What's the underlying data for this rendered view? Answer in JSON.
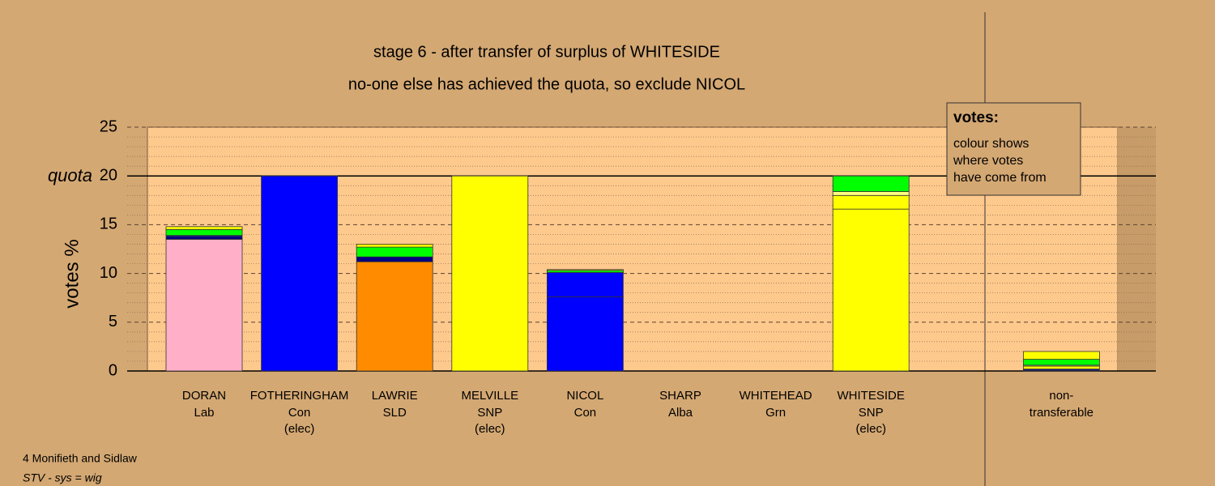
{
  "chart_data": {
    "type": "stacked-bar",
    "title": "stage 6 - after transfer of surplus of WHITESIDE",
    "subtitle": "no-one else has achieved the quota, so exclude NICOL",
    "y_label": "votes %",
    "quota": {
      "value": 20,
      "label": "quota"
    },
    "categories": [
      "DORAN",
      "FOTHERINGHAM",
      "LAWRIE",
      "MELVILLE",
      "NICOL",
      "SHARP",
      "WHITEHEAD",
      "WHITESIDE",
      null,
      "non-"
    ],
    "parties": [
      "Lab",
      "Con",
      "SLD",
      "SNP",
      "Con",
      "Alba",
      "Grn",
      "SNP",
      null,
      "transferable"
    ],
    "notes": [
      null,
      "(elec)",
      null,
      "(elec)",
      null,
      null,
      null,
      "(elec)",
      null,
      null
    ],
    "series": [
      {
        "color": "#ffb0c8",
        "values": [
          13.5,
          0,
          0,
          0,
          0,
          0,
          0,
          0,
          null,
          0
        ]
      },
      {
        "color": "#0000ff",
        "values": [
          0,
          20,
          0,
          0,
          7.6,
          0,
          0,
          0,
          null,
          0
        ]
      },
      {
        "color": "#ff8c00",
        "values": [
          0,
          0,
          11.2,
          0,
          0,
          0,
          0,
          0,
          null,
          0
        ]
      },
      {
        "color": "#ffff00",
        "values": [
          0,
          0,
          0,
          20,
          0,
          0,
          0,
          16.6,
          null,
          0
        ]
      },
      {
        "color": "#000080",
        "values": [
          0.3,
          0,
          0.5,
          0,
          0,
          0,
          0,
          0,
          null,
          0.1
        ]
      },
      {
        "color": "#0000ff",
        "values": [
          0.1,
          0,
          0,
          0,
          2.5,
          0,
          0,
          0,
          null,
          0.1
        ]
      },
      {
        "color": "#ffff00",
        "values": [
          0,
          0,
          0,
          0,
          0,
          0,
          0,
          1.4,
          null,
          0.3
        ]
      },
      {
        "color": "#ffff80",
        "values": [
          0,
          0,
          0,
          0,
          0,
          0,
          0,
          0.4,
          null,
          0.1
        ]
      },
      {
        "color": "#00ff00",
        "values": [
          0.6,
          0,
          1.0,
          0,
          0.2,
          0,
          0,
          1.6,
          null,
          0.6
        ]
      },
      {
        "color": "#ffff00",
        "values": [
          0.3,
          0,
          0.3,
          0,
          0.1,
          0,
          0,
          0,
          null,
          0.8
        ]
      }
    ],
    "ylim": [
      0,
      25
    ],
    "yticks": [
      0,
      5,
      10,
      15,
      20,
      25
    ],
    "grid": true,
    "legend_box": {
      "title": "votes:",
      "lines": [
        "colour shows",
        "where votes",
        "have come from"
      ]
    },
    "footer": {
      "area": "4 Monifieth and Sidlaw",
      "system": "STV - sys = wig"
    }
  }
}
